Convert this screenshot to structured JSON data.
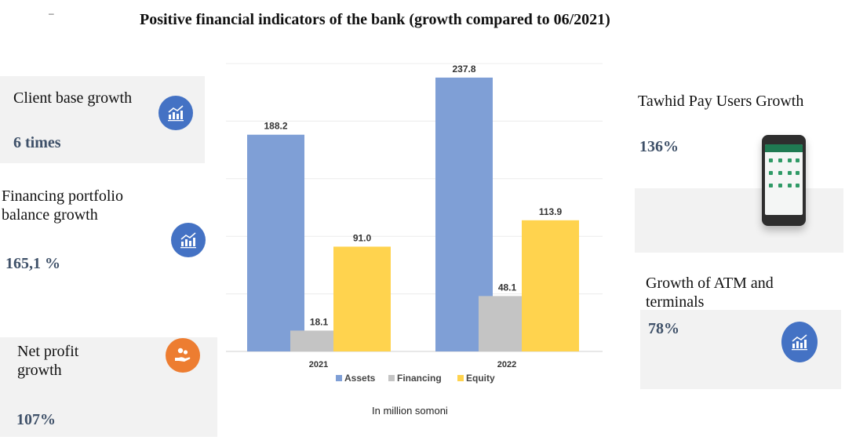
{
  "header": {
    "title": "Positive financial indicators of the bank (growth compared to 06/2021)",
    "mark": "–"
  },
  "kpis": {
    "client_base": {
      "label": "Client base growth",
      "value": "6 times"
    },
    "financing": {
      "label_line1": "Financing portfolio",
      "label_line2": "balance growth",
      "value": "165,1 %"
    },
    "net_profit": {
      "label_line1": "Net profit",
      "label_line2": "growth",
      "value": "107%"
    },
    "tawhid": {
      "label": "Tawhid Pay Users Growth",
      "value": "136%"
    },
    "atm": {
      "label_line1": "Growth of ATM and",
      "label_line2": "terminals",
      "value": "78%"
    }
  },
  "icons": {
    "client_base": "chart-growth-icon",
    "financing": "chart-growth-icon",
    "net_profit": "money-hand-icon",
    "atm": "chart-growth-icon",
    "tawhid": "smartphone-icon"
  },
  "chart_data": {
    "type": "bar",
    "categories": [
      "2021",
      "2022"
    ],
    "series": [
      {
        "name": "Assets",
        "values": [
          188.2,
          237.8
        ],
        "color": "#7f9fd6"
      },
      {
        "name": "Financing",
        "values": [
          18.1,
          48.1
        ],
        "color": "#c4c4c4"
      },
      {
        "name": "Equity",
        "values": [
          91.0,
          113.9
        ],
        "color": "#ffd34e"
      }
    ],
    "value_labels": [
      [
        "188.2",
        "237.8"
      ],
      [
        "18.1",
        "48.1"
      ],
      [
        "91.0",
        "113.9"
      ]
    ],
    "ylim": [
      0,
      250
    ],
    "grid": true,
    "legend": "bottom",
    "note": "In million somoni"
  }
}
